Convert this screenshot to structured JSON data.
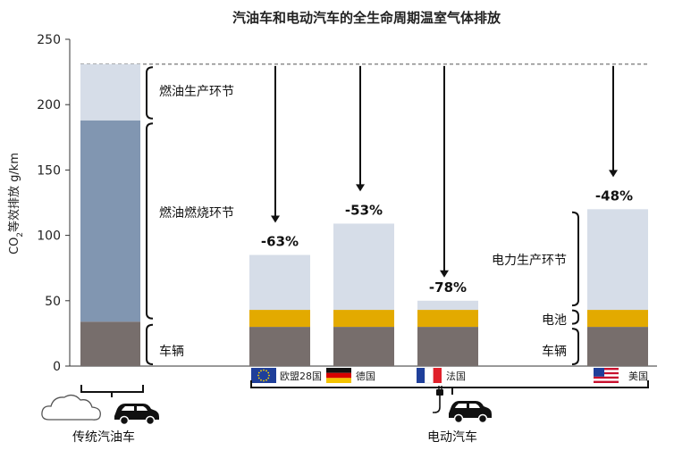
{
  "chart_data": {
    "type": "bar",
    "title": "汽油车和电动汽车的全生命周期温室气体排放",
    "ylabel_main": "CO",
    "ylabel_sub": "2",
    "ylabel_rest": "等效排放 g/km",
    "ylim": [
      0,
      250
    ],
    "yticks": [
      0,
      50,
      100,
      150,
      200,
      250
    ],
    "reference_line": 231,
    "colors": {
      "vehicle": "#776e6c",
      "battery": "#e3aa00",
      "fuel_combustion": "#8196b1",
      "production": "#d6dde8"
    },
    "gasoline": {
      "segments": [
        {
          "name": "车辆",
          "value": 34
        },
        {
          "name": "燃油燃烧环节",
          "value": 154
        },
        {
          "name": "燃油生产环节",
          "value": 43
        }
      ],
      "segment_labels": [
        "车辆",
        "燃油燃烧环节",
        "燃油生产环节"
      ]
    },
    "ev_bars": [
      {
        "country": "欧盟28国",
        "flag": "eu-flag",
        "vehicle": 30,
        "battery": 13,
        "electricity": 42,
        "change": "-63%"
      },
      {
        "country": "德国",
        "flag": "germany-flag",
        "vehicle": 30,
        "battery": 13,
        "electricity": 66,
        "change": "-53%"
      },
      {
        "country": "法国",
        "flag": "france-flag",
        "vehicle": 30,
        "battery": 13,
        "electricity": 7,
        "change": "-78%"
      },
      {
        "country": "美国",
        "flag": "usa-flag",
        "vehicle": 30,
        "battery": 13,
        "electricity": 77,
        "change": "-48%"
      }
    ],
    "ev_labels": {
      "electricity": "电力生产环节",
      "battery": "电池",
      "vehicle": "车辆"
    }
  },
  "footer": {
    "gasoline_label": "传统汽油车",
    "ev_label": "电动汽车"
  }
}
